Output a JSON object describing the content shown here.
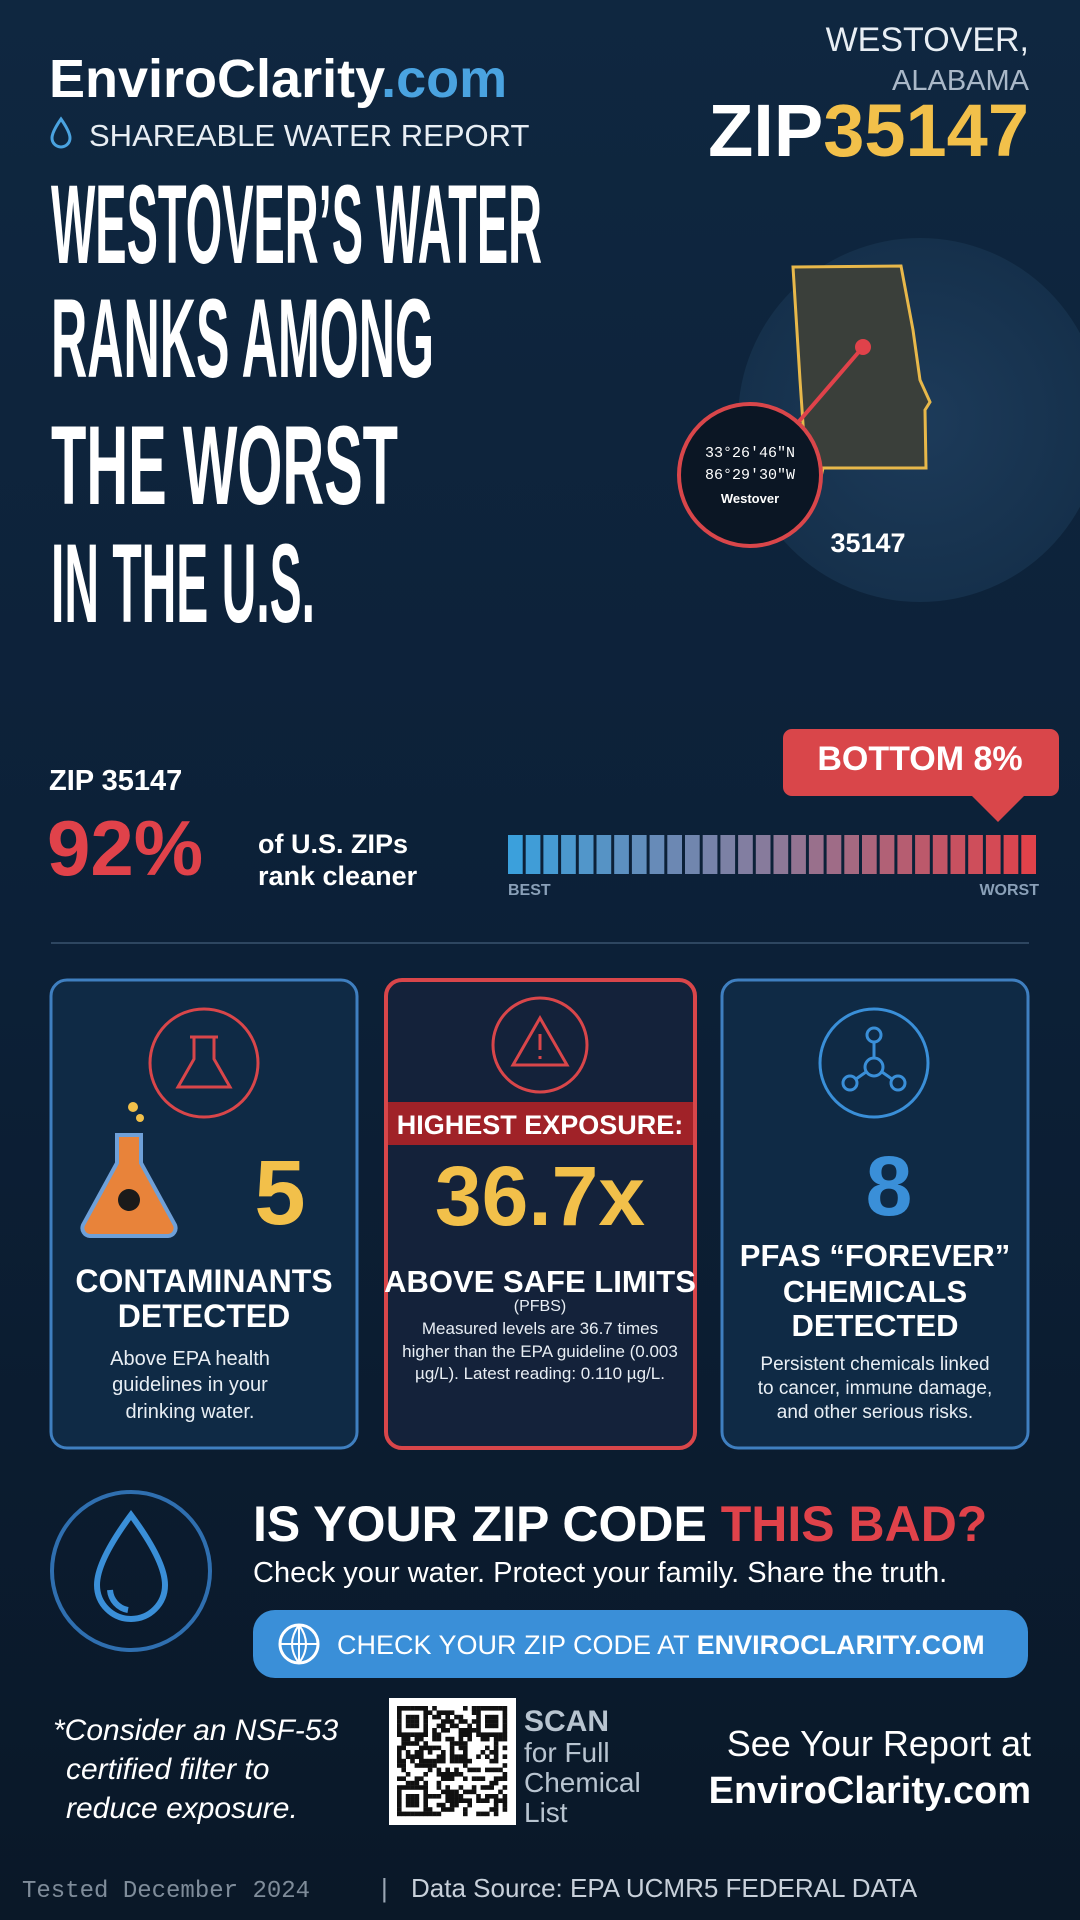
{
  "header": {
    "brand": "EnviroClarity",
    "brand_suffix": ".com",
    "subtitle": "SHAREABLE WATER REPORT",
    "city": "WESTOVER,",
    "state": "ALABAMA",
    "zip_prefix": "ZIP",
    "zip": "35147"
  },
  "headline": [
    "WESTOVER’S WATER",
    "RANKS AMONG",
    "THE WORST",
    "IN THE U.S."
  ],
  "map": {
    "lat": "33°26′46″N",
    "lon": "86°29′30″W",
    "place": "Westover",
    "zip_label": "35147"
  },
  "ranking": {
    "zip_label": "ZIP 35147",
    "percent": "92%",
    "text_lines": [
      "of U.S. ZIPs",
      "rank cleaner"
    ],
    "badge": "BOTTOM 8%",
    "scale_left": "BEST",
    "scale_right": "WORST"
  },
  "cards": [
    {
      "number": "5",
      "title_lines": [
        "CONTAMINANTS",
        "DETECTED"
      ],
      "description_lines": [
        "Above EPA health",
        "guidelines in your",
        "drinking water."
      ]
    },
    {
      "banner": "HIGHEST EXPOSURE:",
      "number": "36.7x",
      "title_lines": [
        "ABOVE SAFE LIMITS"
      ],
      "subtitle": "(PFBS)",
      "description_lines": [
        "Measured levels are 36.7 times",
        "higher than the EPA guideline (0.003",
        "µg/L). Latest reading: 0.110 µg/L."
      ]
    },
    {
      "number": "8",
      "title_lines": [
        "PFAS “FOREVER”",
        "CHEMICALS",
        "DETECTED"
      ],
      "description_lines": [
        "Persistent chemicals linked",
        "to cancer, immune damage,",
        "and other serious risks."
      ]
    }
  ],
  "cta": {
    "question": "IS YOUR ZIP CODE ",
    "question_highlight": "THIS BAD?",
    "tagline": "Check your water. Protect your family. Share the truth.",
    "button": "CHECK YOUR ZIP CODE AT ",
    "button_highlight": "ENVIROCLARITY.COM"
  },
  "footer": {
    "note_lines": [
      "*Consider an NSF-53",
      "certified filter to",
      "reduce exposure."
    ],
    "scan": "SCAN",
    "scan_lines": [
      "for Full",
      "Chemical",
      "List"
    ],
    "report_lines": [
      "See Your Report at",
      "EnviroClarity.com"
    ],
    "tested": "Tested December 2024",
    "separator": "|",
    "source": "Data Source: EPA UCMR5 FEDERAL DATA"
  }
}
